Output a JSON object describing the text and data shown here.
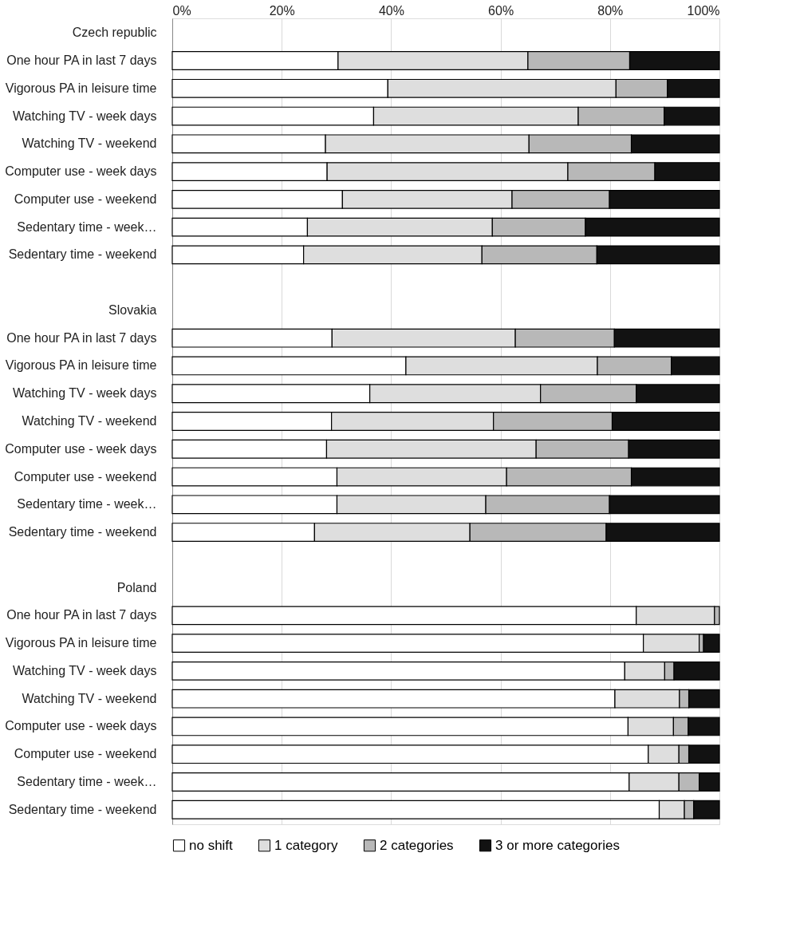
{
  "chart_data": {
    "type": "bar",
    "orientation": "horizontal",
    "stacked": true,
    "categories": [
      "Czech republic",
      "One hour PA in last 7 days",
      "Vigorous PA in leisure time",
      "Watching TV - week days",
      "Watching TV - weekend",
      "Computer use - week days",
      "Computer use - weekend",
      "Sedentary time - week…",
      "Sedentary time - weekend",
      null,
      "Slovakia",
      "One hour PA in last 7 days",
      "Vigorous PA in leisure time",
      "Watching TV - week days",
      "Watching TV - weekend",
      "Computer use - week days",
      "Computer use - weekend",
      "Sedentary time - week…",
      "Sedentary time - weekend",
      null,
      "Poland",
      "One hour PA in last 7 days",
      "Vigorous PA in leisure time",
      "Watching TV - week days",
      "Watching TV - weekend",
      "Computer use - week days",
      "Computer use - weekend",
      "Sedentary time - week…",
      "Sedentary time - weekend"
    ],
    "series": [
      {
        "name": "no shift",
        "color": "#ffffff",
        "values": [
          null,
          30.3,
          39.4,
          36.8,
          28.0,
          28.3,
          31.1,
          24.7,
          24.0,
          null,
          null,
          29.2,
          42.7,
          36.1,
          29.1,
          28.2,
          30.1,
          30.1,
          26.0,
          null,
          null,
          84.8,
          86.1,
          82.7,
          80.9,
          83.3,
          87.0,
          83.5,
          89.0
        ]
      },
      {
        "name": "1 category",
        "color": "#dedede",
        "values": [
          null,
          34.7,
          41.7,
          37.4,
          37.2,
          44.0,
          31.0,
          33.8,
          32.6,
          null,
          null,
          33.5,
          35.0,
          31.2,
          29.6,
          38.3,
          31.0,
          27.2,
          28.4,
          null,
          null,
          14.3,
          10.2,
          7.3,
          11.8,
          8.3,
          5.6,
          9.1,
          4.6
        ]
      },
      {
        "name": "2 categories",
        "color": "#b8b8b8",
        "values": [
          null,
          18.6,
          9.4,
          15.7,
          18.7,
          15.9,
          17.8,
          17.0,
          21.0,
          null,
          null,
          18.1,
          13.5,
          17.5,
          21.7,
          16.9,
          22.8,
          22.6,
          24.9,
          null,
          null,
          0.9,
          0.8,
          1.7,
          1.7,
          2.7,
          1.8,
          3.7,
          1.7
        ]
      },
      {
        "name": "3 or more categories",
        "color": "#121212",
        "values": [
          null,
          16.4,
          9.5,
          10.1,
          16.1,
          11.8,
          20.1,
          24.5,
          22.4,
          null,
          null,
          19.2,
          8.8,
          15.2,
          19.6,
          16.6,
          16.1,
          20.1,
          20.7,
          null,
          null,
          null,
          2.9,
          8.3,
          5.6,
          5.7,
          5.6,
          3.7,
          4.7
        ]
      }
    ],
    "xlim": [
      0,
      100
    ],
    "xticks": [
      {
        "value": 0,
        "label": "0%"
      },
      {
        "value": 20,
        "label": "20%"
      },
      {
        "value": 40,
        "label": "40%"
      },
      {
        "value": 60,
        "label": "60%"
      },
      {
        "value": 80,
        "label": "80%"
      },
      {
        "value": 100,
        "label": "100%"
      }
    ],
    "grid": "x",
    "legend": "bottom"
  }
}
